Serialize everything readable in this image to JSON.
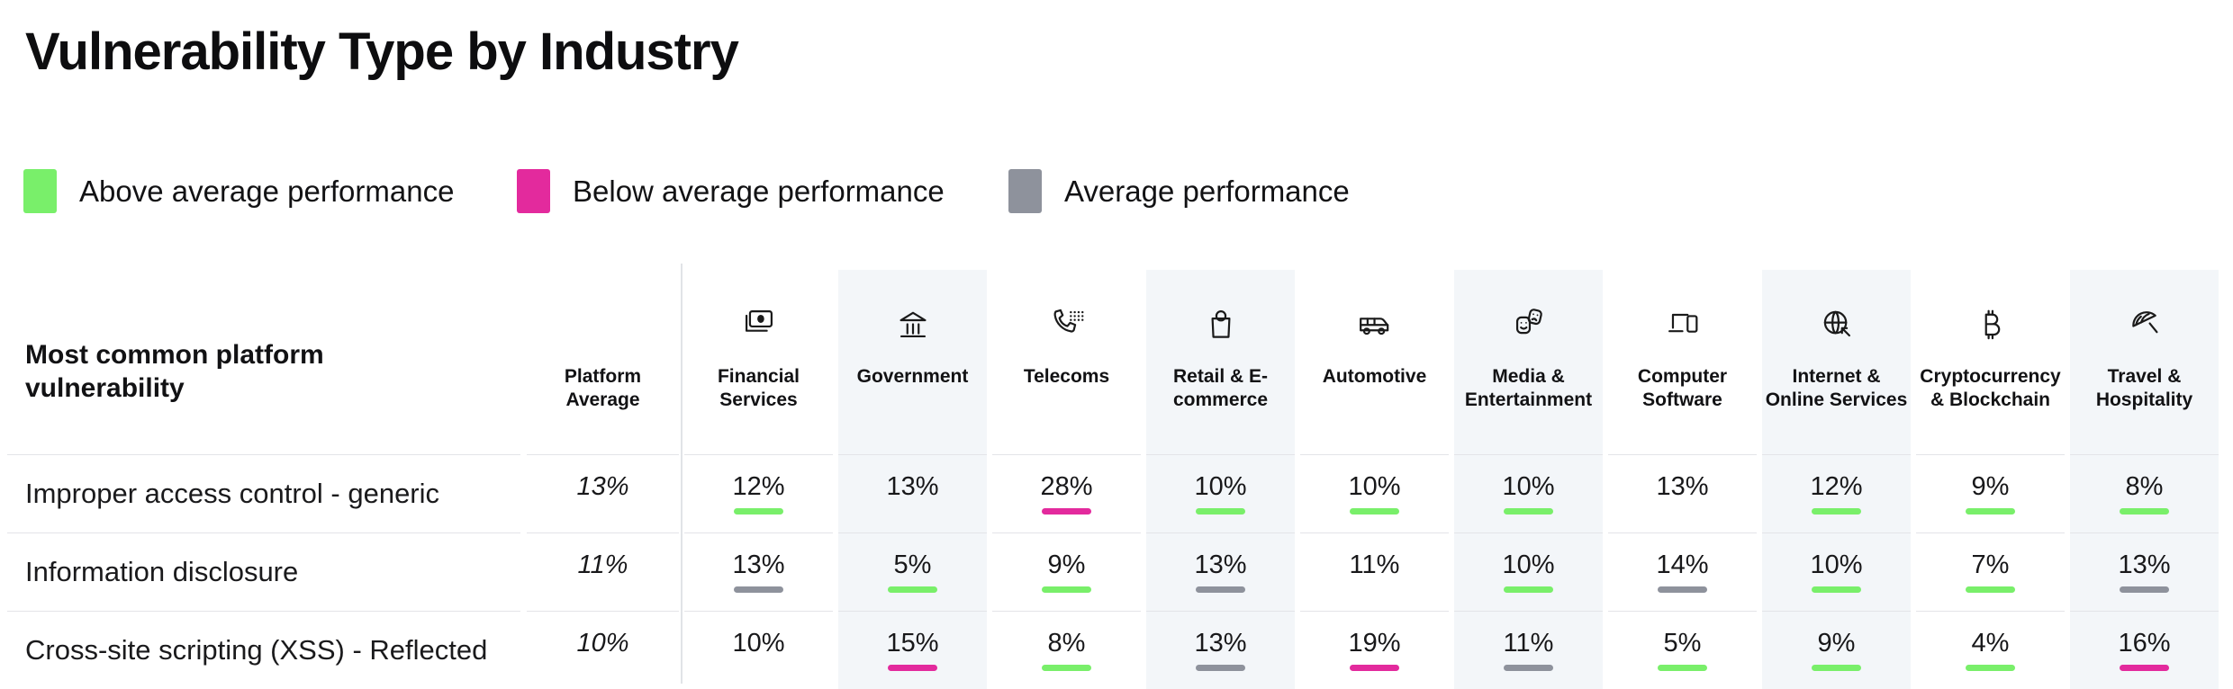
{
  "title": "Vulnerability Type by Industry",
  "legend": [
    {
      "key": "above",
      "label": "Above average performance"
    },
    {
      "key": "below",
      "label": "Below average performance"
    },
    {
      "key": "average",
      "label": "Average performance"
    }
  ],
  "colors": {
    "above": "#79ef6a",
    "below": "#e32a9d",
    "average": "#8e929c",
    "stripe": "#f3f6f9"
  },
  "table": {
    "row_header_title": "Most common platform vulnerability",
    "avg_column_label": "Platform Average",
    "columns": [
      {
        "label": "Financial Services",
        "icon": "banknote-icon",
        "shaded": false
      },
      {
        "label": "Government",
        "icon": "bank-icon",
        "shaded": true
      },
      {
        "label": "Telecoms",
        "icon": "phone-keypad-icon",
        "shaded": false
      },
      {
        "label": "Retail & E-commerce",
        "icon": "shopping-bag-icon",
        "shaded": true
      },
      {
        "label": "Automotive",
        "icon": "shuttle-van-icon",
        "shaded": false
      },
      {
        "label": "Media & Entertainment",
        "icon": "theater-masks-icon",
        "shaded": true
      },
      {
        "label": "Computer Software",
        "icon": "laptop-phone-icon",
        "shaded": false
      },
      {
        "label": "Internet & Online Services",
        "icon": "globe-cursor-icon",
        "shaded": true
      },
      {
        "label": "Cryptocurrency & Blockchain",
        "icon": "bitcoin-icon",
        "shaded": false
      },
      {
        "label": "Travel & Hospitality",
        "icon": "beach-umbrella-icon",
        "shaded": true
      }
    ]
  },
  "chart_data": {
    "type": "table",
    "title": "Vulnerability Type by Industry",
    "row_label_header": "Most common platform vulnerability",
    "columns": [
      "Platform Average",
      "Financial Services",
      "Government",
      "Telecoms",
      "Retail & E-commerce",
      "Automotive",
      "Media & Entertainment",
      "Computer Software",
      "Internet & Online Services",
      "Cryptocurrency & Blockchain",
      "Travel & Hospitality"
    ],
    "legend": {
      "above": "Above average performance",
      "below": "Below average performance",
      "average": "Average performance"
    },
    "rows": [
      {
        "label": "Improper access control - generic",
        "platform_average_pct": 13,
        "values_pct": [
          12,
          13,
          28,
          10,
          10,
          10,
          13,
          12,
          9,
          8
        ],
        "status": [
          "above",
          "none",
          "below",
          "above",
          "above",
          "above",
          "none",
          "above",
          "above",
          "above"
        ]
      },
      {
        "label": "Information disclosure",
        "platform_average_pct": 11,
        "values_pct": [
          13,
          5,
          9,
          13,
          11,
          10,
          14,
          10,
          7,
          13
        ],
        "status": [
          "average",
          "above",
          "above",
          "average",
          "none",
          "above",
          "average",
          "above",
          "above",
          "average"
        ]
      },
      {
        "label": "Cross-site scripting (XSS) - Reflected",
        "platform_average_pct": 10,
        "values_pct": [
          10,
          15,
          8,
          13,
          19,
          11,
          5,
          9,
          4,
          16
        ],
        "status": [
          "none",
          "below",
          "above",
          "average",
          "below",
          "average",
          "above",
          "above",
          "above",
          "below"
        ]
      }
    ]
  }
}
